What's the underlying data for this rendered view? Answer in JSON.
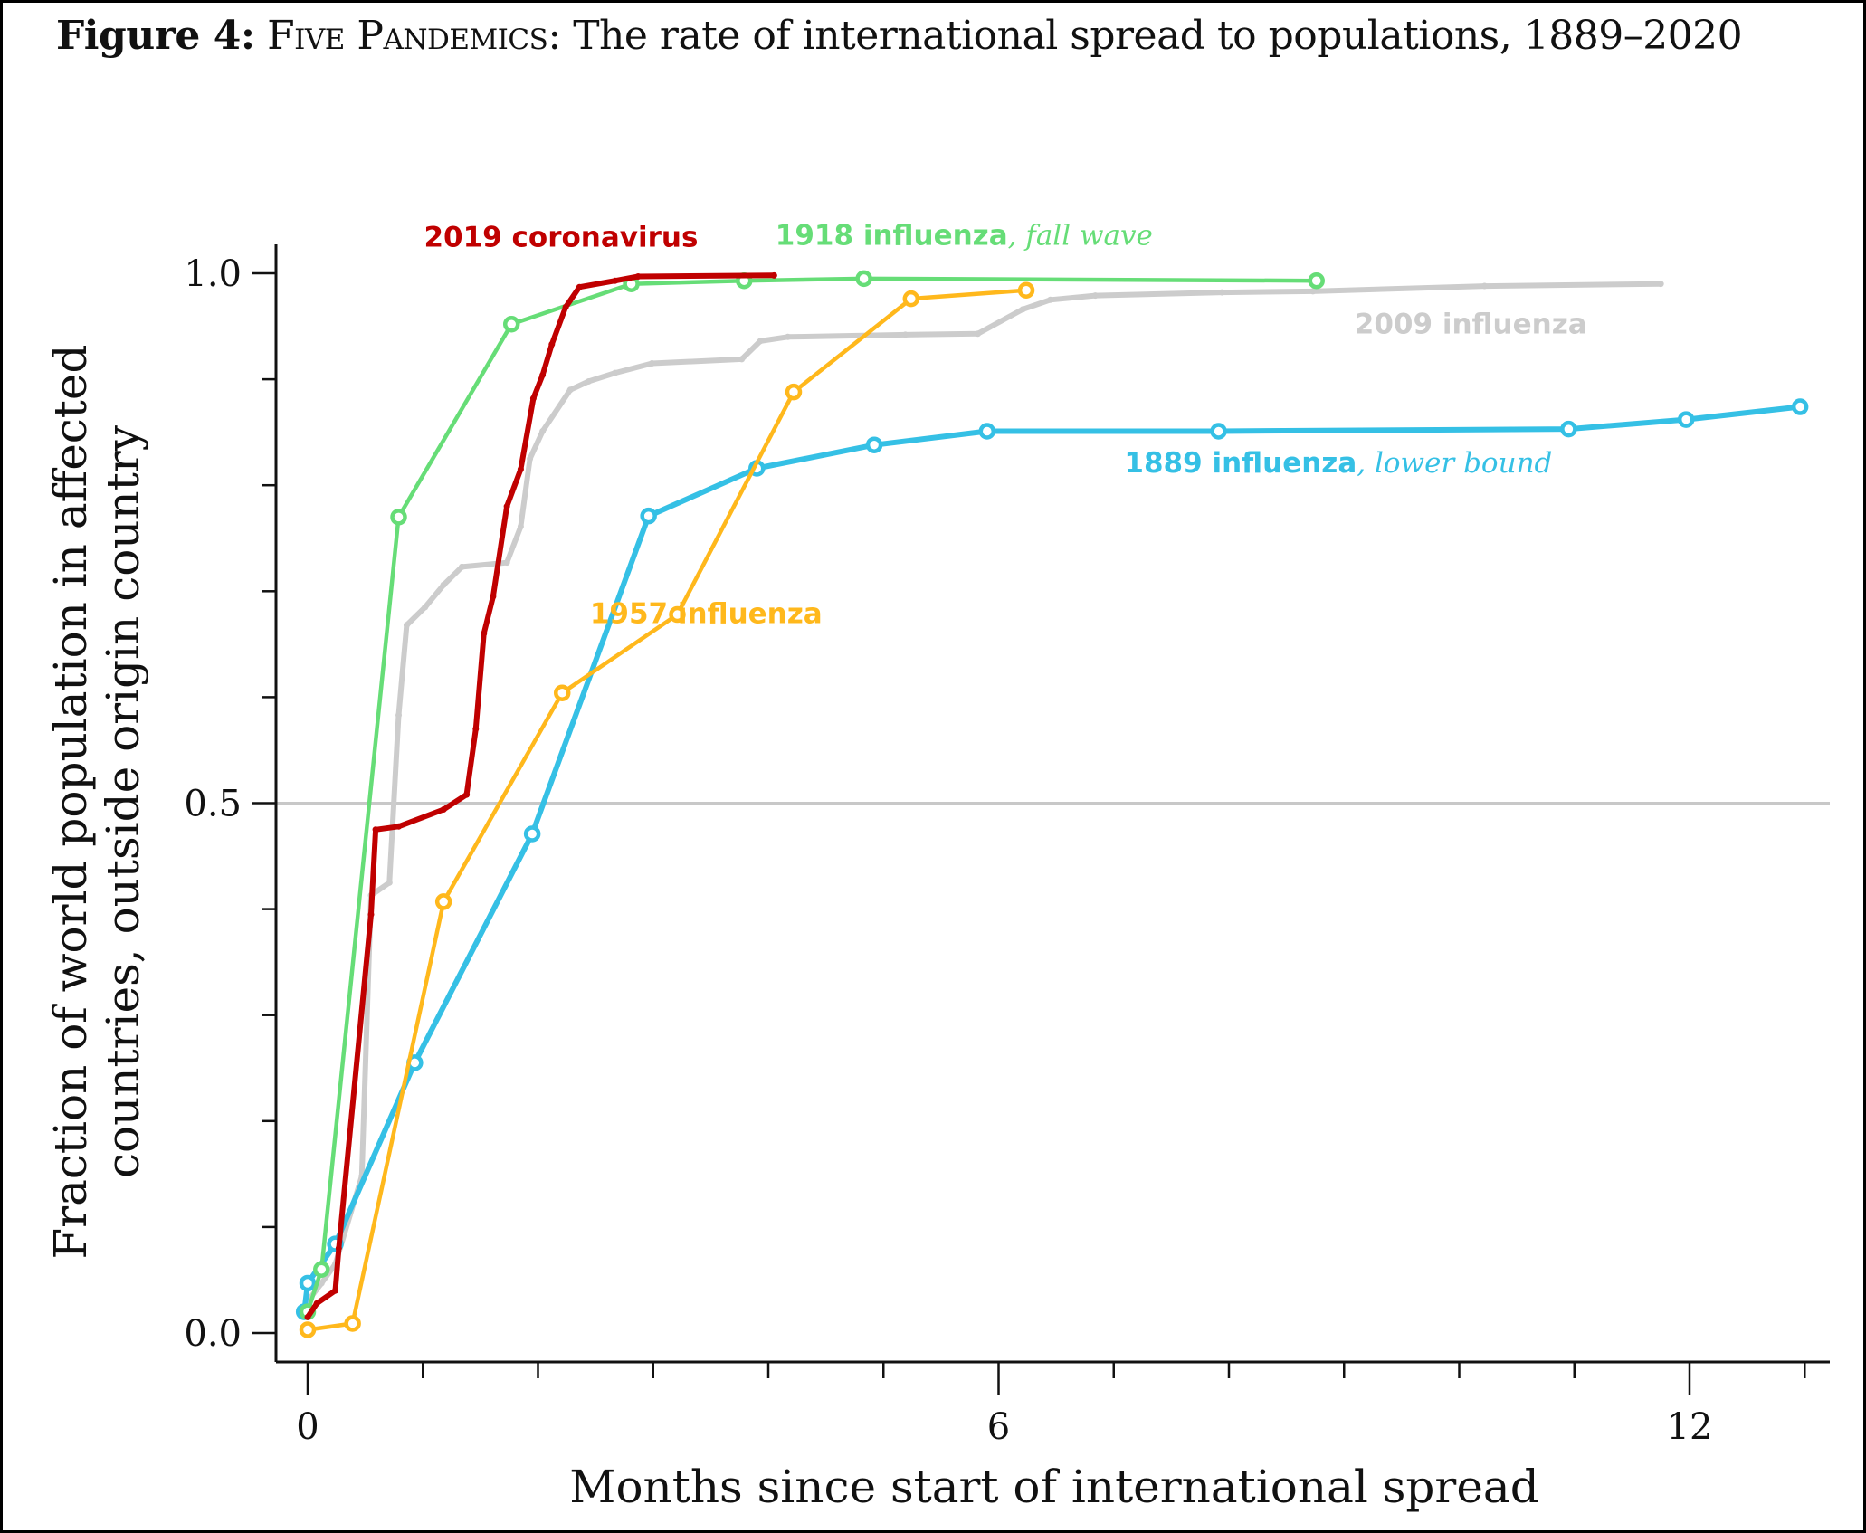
{
  "figure": {
    "label": "Figure 4:",
    "name": "Five Pandemics",
    "title_rest": ": The rate of international spread to populations, 1889–2020"
  },
  "chart_data": {
    "type": "line",
    "title": "Figure 4: Five Pandemics: The rate of international spread to populations, 1889–2020",
    "xlabel": "Months since start of international spread",
    "ylabel_lines": [
      "Fraction of world population in affected",
      "countries, outside origin country"
    ],
    "xlim": [
      -0.3,
      13.2
    ],
    "ylim": [
      -0.03,
      1.03
    ],
    "x_major_ticks": [
      0,
      6,
      12
    ],
    "x_minor_tick_step": 1,
    "y_major_ticks": [
      0.0,
      0.5,
      1.0
    ],
    "y_tick_labels": [
      "0.0",
      "0.5",
      "1.0"
    ],
    "y_minor_tick_step": 0.1,
    "reference_line": {
      "y": 0.5,
      "color": "#c8c8c8"
    },
    "grid": false,
    "series": [
      {
        "id": "1889",
        "name": "1889 influenza",
        "name_italic": ", lower bound",
        "color": "#35c0e5",
        "markers": true,
        "x": [
          -0.03,
          0.0,
          0.24,
          0.93,
          1.95,
          2.96,
          3.9,
          4.92,
          5.9,
          7.91,
          10.95,
          11.97,
          12.96
        ],
        "y": [
          0.02,
          0.047,
          0.084,
          0.255,
          0.471,
          0.771,
          0.816,
          0.838,
          0.851,
          0.851,
          0.853,
          0.862,
          0.874
        ]
      },
      {
        "id": "1918",
        "name": "1918 influenza",
        "name_italic": ", fall wave",
        "color": "#66dd77",
        "markers": true,
        "x": [
          0.0,
          0.12,
          0.79,
          1.77,
          2.81,
          3.79,
          4.83,
          8.76
        ],
        "y": [
          0.02,
          0.06,
          0.77,
          0.952,
          0.99,
          0.993,
          0.995,
          0.993
        ]
      },
      {
        "id": "1957",
        "name": "1957 influenza",
        "name_italic": "",
        "color": "#ffb81c",
        "markers": true,
        "x": [
          0.0,
          0.39,
          1.18,
          2.21,
          3.21,
          4.22,
          5.24,
          6.24
        ],
        "y": [
          0.003,
          0.009,
          0.407,
          0.604,
          0.678,
          0.888,
          0.976,
          0.984
        ]
      },
      {
        "id": "2009",
        "name": "2009 influenza",
        "name_italic": "",
        "color": "#cccccc",
        "markers": false,
        "x": [
          0.0,
          0.12,
          0.24,
          0.47,
          0.55,
          0.71,
          0.79,
          0.86,
          1.02,
          1.18,
          1.34,
          1.73,
          1.85,
          1.93,
          2.04,
          2.28,
          2.44,
          2.67,
          2.99,
          3.77,
          3.93,
          4.17,
          5.19,
          5.82,
          6.21,
          6.45,
          6.84,
          7.94,
          8.73,
          10.22,
          11.75
        ],
        "y": [
          0.03,
          0.047,
          0.065,
          0.148,
          0.413,
          0.425,
          0.583,
          0.668,
          0.685,
          0.706,
          0.723,
          0.727,
          0.761,
          0.825,
          0.851,
          0.89,
          0.898,
          0.906,
          0.915,
          0.919,
          0.936,
          0.94,
          0.942,
          0.943,
          0.966,
          0.975,
          0.979,
          0.982,
          0.983,
          0.988,
          0.99
        ]
      },
      {
        "id": "2019",
        "name": "2019 coronavirus",
        "name_italic": "",
        "color": "#c00000",
        "markers": false,
        "x": [
          0.0,
          0.08,
          0.24,
          0.27,
          0.55,
          0.59,
          0.79,
          1.18,
          1.38,
          1.46,
          1.53,
          1.61,
          1.73,
          1.85,
          1.96,
          2.04,
          2.12,
          2.24,
          2.36,
          2.67,
          2.87,
          4.05
        ],
        "y": [
          0.015,
          0.028,
          0.04,
          0.08,
          0.395,
          0.475,
          0.478,
          0.494,
          0.508,
          0.57,
          0.66,
          0.695,
          0.78,
          0.815,
          0.882,
          0.904,
          0.933,
          0.968,
          0.987,
          0.993,
          0.997,
          0.998
        ]
      }
    ],
    "annotations": [
      {
        "series": "2019",
        "text": "2019 coronavirus",
        "italic": "",
        "anchor_x": 2.2,
        "anchor_y": 1.025
      },
      {
        "series": "1918",
        "text": "1918 influenza",
        "italic": ", fall wave",
        "anchor_x": 5.7,
        "anchor_y": 1.027
      },
      {
        "series": "2009",
        "text": "2009 influenza",
        "italic": "",
        "anchor_x": 10.1,
        "anchor_y": 0.943
      },
      {
        "series": "1889",
        "text": "1889 influenza",
        "italic": ", lower bound",
        "anchor_x": 8.95,
        "anchor_y": 0.812
      },
      {
        "series": "1957",
        "text": "1957 influenza",
        "italic": "",
        "anchor_x": 3.46,
        "anchor_y": 0.67
      }
    ]
  }
}
